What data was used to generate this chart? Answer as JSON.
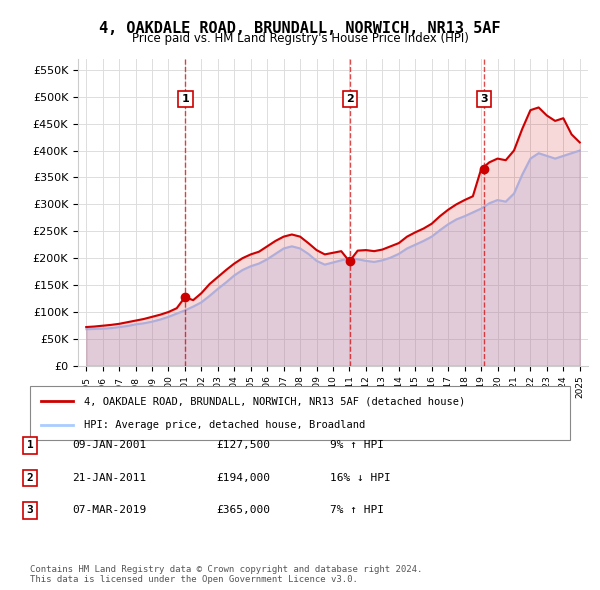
{
  "title": "4, OAKDALE ROAD, BRUNDALL, NORWICH, NR13 5AF",
  "subtitle": "Price paid vs. HM Land Registry's House Price Index (HPI)",
  "ylabel_ticks": [
    "£0",
    "£50K",
    "£100K",
    "£150K",
    "£200K",
    "£250K",
    "£300K",
    "£350K",
    "£400K",
    "£450K",
    "£500K",
    "£550K"
  ],
  "ytick_values": [
    0,
    50000,
    100000,
    150000,
    200000,
    250000,
    300000,
    350000,
    400000,
    450000,
    500000,
    550000
  ],
  "xlim": [
    1994.5,
    2025.5
  ],
  "ylim": [
    0,
    570000
  ],
  "background_color": "#ffffff",
  "grid_color": "#dddddd",
  "sale_dates": [
    2001.03,
    2011.05,
    2019.18
  ],
  "sale_prices": [
    127500,
    194000,
    365000
  ],
  "sale_labels": [
    "1",
    "2",
    "3"
  ],
  "sale_line_color": "#cc0000",
  "sale_marker_color": "#cc0000",
  "hpi_line_color": "#aaccff",
  "hpi_years": [
    1995,
    1995.5,
    1996,
    1996.5,
    1997,
    1997.5,
    1998,
    1998.5,
    1999,
    1999.5,
    2000,
    2000.5,
    2001,
    2001.5,
    2002,
    2002.5,
    2003,
    2003.5,
    2004,
    2004.5,
    2005,
    2005.5,
    2006,
    2006.5,
    2007,
    2007.5,
    2008,
    2008.5,
    2009,
    2009.5,
    2010,
    2010.5,
    2011,
    2011.5,
    2012,
    2012.5,
    2013,
    2013.5,
    2014,
    2014.5,
    2015,
    2015.5,
    2016,
    2016.5,
    2017,
    2017.5,
    2018,
    2018.5,
    2019,
    2019.5,
    2020,
    2020.5,
    2021,
    2021.5,
    2022,
    2022.5,
    2023,
    2023.5,
    2024,
    2024.5,
    2025
  ],
  "hpi_values": [
    68000,
    68500,
    69000,
    70000,
    72000,
    74000,
    77000,
    79000,
    82000,
    86000,
    91000,
    97000,
    103000,
    110000,
    118000,
    130000,
    143000,
    155000,
    168000,
    178000,
    185000,
    190000,
    198000,
    208000,
    218000,
    222000,
    218000,
    208000,
    195000,
    188000,
    192000,
    196000,
    200000,
    198000,
    195000,
    193000,
    196000,
    201000,
    208000,
    218000,
    225000,
    232000,
    240000,
    252000,
    263000,
    272000,
    278000,
    285000,
    292000,
    302000,
    308000,
    305000,
    320000,
    355000,
    385000,
    395000,
    390000,
    385000,
    390000,
    395000,
    400000
  ],
  "price_years": [
    1995,
    1995.5,
    1996,
    1996.5,
    1997,
    1997.5,
    1998,
    1998.5,
    1999,
    1999.5,
    2000,
    2000.5,
    2001,
    2001.5,
    2002,
    2002.5,
    2003,
    2003.5,
    2004,
    2004.5,
    2005,
    2005.5,
    2006,
    2006.5,
    2007,
    2007.5,
    2008,
    2008.5,
    2009,
    2009.5,
    2010,
    2010.5,
    2011,
    2011.5,
    2012,
    2012.5,
    2013,
    2013.5,
    2014,
    2014.5,
    2015,
    2015.5,
    2016,
    2016.5,
    2017,
    2017.5,
    2018,
    2018.5,
    2019,
    2019.5,
    2020,
    2020.5,
    2021,
    2021.5,
    2022,
    2022.5,
    2023,
    2023.5,
    2024,
    2024.5,
    2025
  ],
  "price_values": [
    72000,
    73000,
    74500,
    76000,
    78000,
    81000,
    84000,
    87000,
    91000,
    95000,
    100000,
    107000,
    127500,
    122000,
    135000,
    152000,
    165000,
    178000,
    190000,
    200000,
    207000,
    212000,
    222000,
    232000,
    240000,
    244000,
    240000,
    228000,
    215000,
    207000,
    210000,
    213000,
    194000,
    214000,
    215000,
    213000,
    216000,
    222000,
    228000,
    240000,
    248000,
    255000,
    264000,
    278000,
    290000,
    300000,
    308000,
    315000,
    365000,
    378000,
    385000,
    382000,
    400000,
    440000,
    475000,
    480000,
    465000,
    455000,
    460000,
    430000,
    415000
  ],
  "legend_sale_label": "4, OAKDALE ROAD, BRUNDALL, NORWICH, NR13 5AF (detached house)",
  "legend_hpi_label": "HPI: Average price, detached house, Broadland",
  "transactions": [
    {
      "label": "1",
      "date": "09-JAN-2001",
      "price": "£127,500",
      "pct": "9%",
      "dir": "↑",
      "text": "HPI"
    },
    {
      "label": "2",
      "date": "21-JAN-2011",
      "price": "£194,000",
      "pct": "16%",
      "dir": "↓",
      "text": "HPI"
    },
    {
      "label": "3",
      "date": "07-MAR-2019",
      "price": "£365,000",
      "pct": "7%",
      "dir": "↑",
      "text": "HPI"
    }
  ],
  "footer": "Contains HM Land Registry data © Crown copyright and database right 2024.\nThis data is licensed under the Open Government Licence v3.0.",
  "vline_color": "#cc0000",
  "vline_style": "--",
  "vline_alpha": 0.7
}
